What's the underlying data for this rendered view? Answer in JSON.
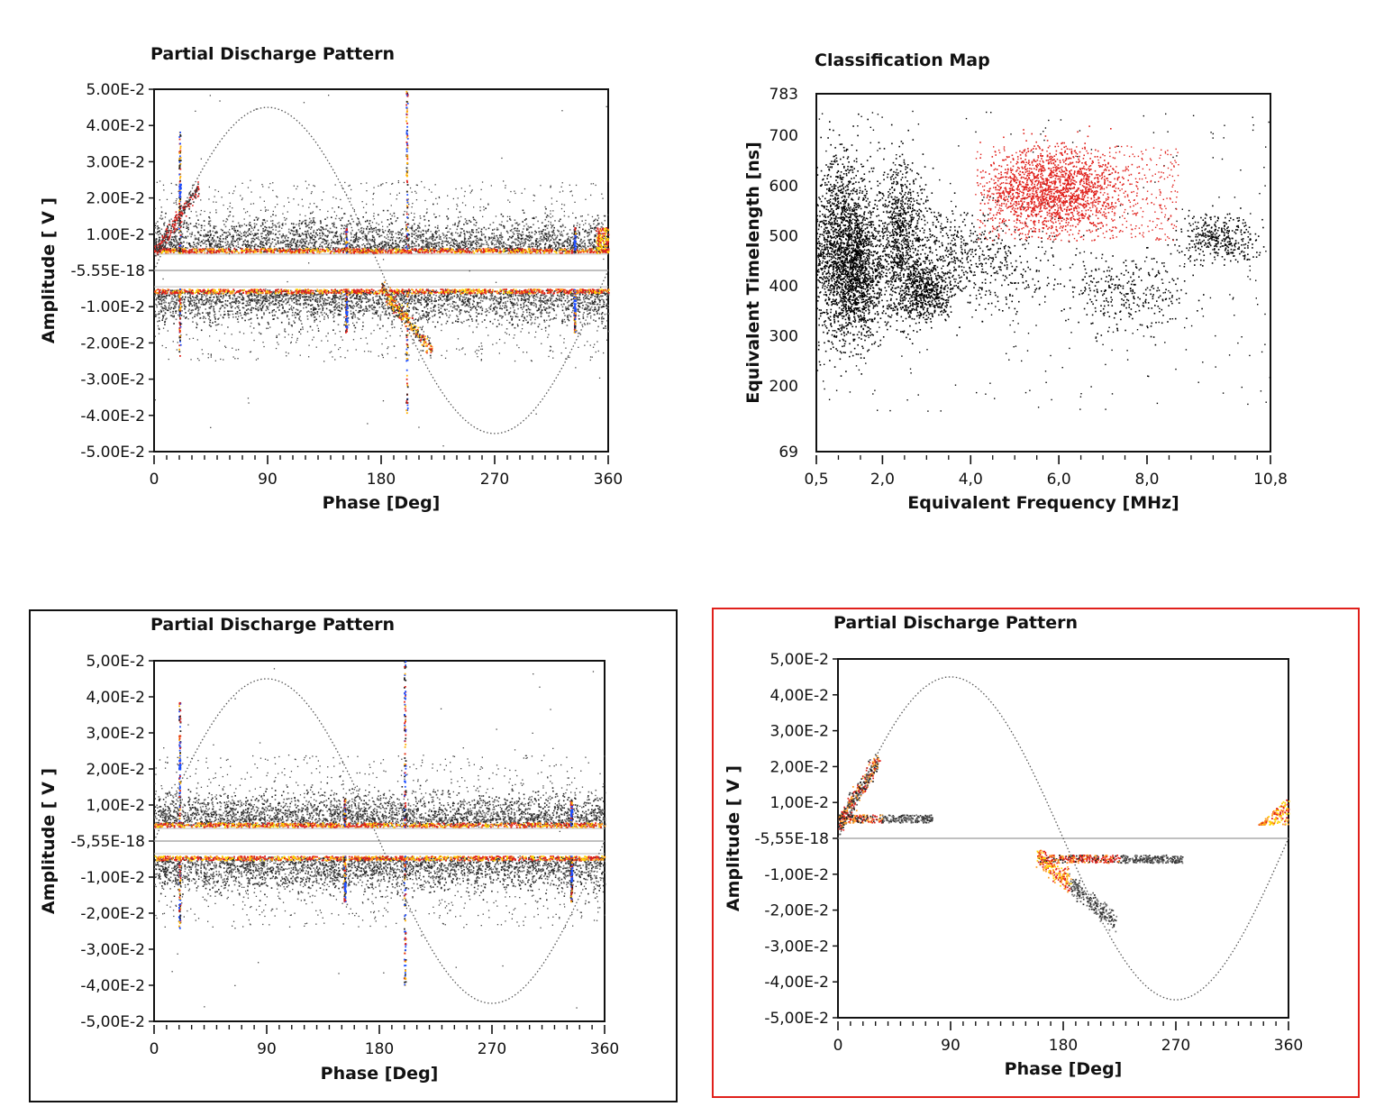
{
  "chart_data": [
    {
      "type": "scatter",
      "id": "prpd_top_left",
      "title": "Partial Discharge Pattern",
      "xlabel": "Phase [Deg]",
      "ylabel": "Amplitude [ V ]",
      "xlim": [
        0,
        360
      ],
      "ylim": [
        -0.05,
        0.05
      ],
      "x_ticks": [
        "0",
        "90",
        "180",
        "270",
        "360"
      ],
      "y_ticks": [
        "5.00E-2",
        "4.00E-2",
        "3.00E-2",
        "2.00E-2",
        "1.00E-2",
        "-5.55E-18",
        "-1.00E-2",
        "-2.00E-2",
        "-3.00E-2",
        "-4.00E-2",
        "-5.00E-2"
      ],
      "reference_sine": {
        "amplitude": 0.045,
        "period_deg": 360
      },
      "noise_band": {
        "lower": -0.005,
        "upper": 0.005
      },
      "pulse_lines_deg": [
        20,
        152,
        200,
        333
      ],
      "series": [
        {
          "color": "#000000",
          "values": [
            [
              5,
              0.008
            ],
            [
              20,
              0.018
            ],
            [
              45,
              0.012
            ],
            [
              90,
              0.009
            ],
            [
              150,
              0.01
            ],
            [
              200,
              0.012
            ],
            [
              270,
              0.009
            ],
            [
              330,
              0.011
            ],
            [
              355,
              0.009
            ],
            [
              190,
              -0.016
            ],
            [
              300,
              -0.011
            ],
            [
              60,
              -0.008
            ]
          ]
        },
        {
          "color": "#e0201b",
          "values": [
            [
              2,
              0.009
            ],
            [
              20,
              0.02
            ],
            [
              180,
              -0.007
            ],
            [
              200,
              -0.012
            ],
            [
              358,
              0.008
            ]
          ]
        },
        {
          "color": "#1e4fff",
          "values": [
            [
              20,
              0.022
            ],
            [
              152,
              -0.012
            ],
            [
              333,
              0.008
            ],
            [
              333,
              -0.008
            ]
          ]
        }
      ]
    },
    {
      "type": "scatter",
      "id": "classification_map",
      "title": "Classification Map",
      "xlabel": "Equivalent Frequency [MHz]",
      "ylabel": "Equivalent Timelength [ns]",
      "xlim": [
        0.5,
        10.8
      ],
      "ylim": [
        69,
        783
      ],
      "x_ticks": [
        "0,5",
        "2,0",
        "4,0",
        "6,0",
        "8,0",
        "10,8"
      ],
      "y_ticks": [
        "783",
        "700",
        "600",
        "500",
        "400",
        "300",
        "200",
        "69"
      ],
      "series": [
        {
          "color": "#000000",
          "values": [
            [
              1.1,
              480
            ],
            [
              1.5,
              400
            ],
            [
              2.5,
              500
            ],
            [
              3.1,
              390
            ],
            [
              4.5,
              450
            ],
            [
              7.5,
              390
            ],
            [
              9.5,
              495
            ]
          ]
        },
        {
          "color": "#e0201b",
          "values": [
            [
              4.8,
              570
            ],
            [
              5.6,
              600
            ],
            [
              6.2,
              590
            ],
            [
              7.2,
              550
            ],
            [
              8.2,
              520
            ]
          ]
        }
      ]
    },
    {
      "type": "scatter",
      "id": "prpd_bottom_left",
      "title": "Partial Discharge Pattern",
      "xlabel": "Phase [Deg]",
      "ylabel": "Amplitude [ V ]",
      "xlim": [
        0,
        360
      ],
      "ylim": [
        -0.05,
        0.05
      ],
      "x_ticks": [
        "0",
        "90",
        "180",
        "270",
        "360"
      ],
      "y_ticks": [
        "5,00E-2",
        "4,00E-2",
        "3,00E-2",
        "2,00E-2",
        "1,00E-2",
        "-5,55E-18",
        "-1,00E-2",
        "-2,00E-2",
        "-3,00E-2",
        "-4,00E-2",
        "-5,00E-2"
      ],
      "reference_sine": {
        "amplitude": 0.045,
        "period_deg": 360
      },
      "noise_band": {
        "lower": -0.004,
        "upper": 0.004
      },
      "pulse_lines_deg": [
        20,
        152,
        200,
        333
      ],
      "series": [
        {
          "color": "#000000",
          "values": [
            [
              10,
              0.01
            ],
            [
              90,
              0.012
            ],
            [
              180,
              0.009
            ],
            [
              270,
              0.01
            ],
            [
              350,
              0.011
            ],
            [
              90,
              -0.01
            ],
            [
              270,
              -0.011
            ]
          ]
        },
        {
          "color": "#e0201b",
          "values": [
            [
              20,
              0.025
            ],
            [
              200,
              -0.015
            ]
          ]
        },
        {
          "color": "#1e4fff",
          "values": [
            [
              20,
              0.022
            ],
            [
              152,
              -0.012
            ],
            [
              333,
              0.008
            ],
            [
              333,
              -0.008
            ]
          ]
        }
      ]
    },
    {
      "type": "scatter",
      "id": "prpd_bottom_right",
      "title": "Partial Discharge Pattern",
      "xlabel": "Phase [Deg]",
      "ylabel": "Amplitude [ V ]",
      "xlim": [
        0,
        360
      ],
      "ylim": [
        -0.05,
        0.05
      ],
      "x_ticks": [
        "0",
        "90",
        "180",
        "270",
        "360"
      ],
      "y_ticks": [
        "5,00E-2",
        "4,00E-2",
        "3,00E-2",
        "2,00E-2",
        "1,00E-2",
        "-5,55E-18",
        "-1,00E-2",
        "-2,00E-2",
        "-3,00E-2",
        "-4,00E-2",
        "-5,00E-2"
      ],
      "reference_sine": {
        "amplitude": 0.045,
        "period_deg": 360
      },
      "series": [
        {
          "color": "#000000",
          "values": [
            [
              8,
              0.011
            ],
            [
              20,
              0.016
            ],
            [
              30,
              0.02
            ],
            [
              40,
              0.006
            ],
            [
              90,
              0.006
            ],
            [
              200,
              -0.012
            ],
            [
              215,
              -0.02
            ],
            [
              220,
              -0.006
            ],
            [
              270,
              -0.005
            ]
          ]
        },
        {
          "color": "#e0201b",
          "values": [
            [
              3,
              0.01
            ],
            [
              30,
              0.006
            ],
            [
              180,
              -0.006
            ],
            [
              200,
              -0.006
            ],
            [
              355,
              0.006
            ]
          ]
        }
      ]
    }
  ]
}
